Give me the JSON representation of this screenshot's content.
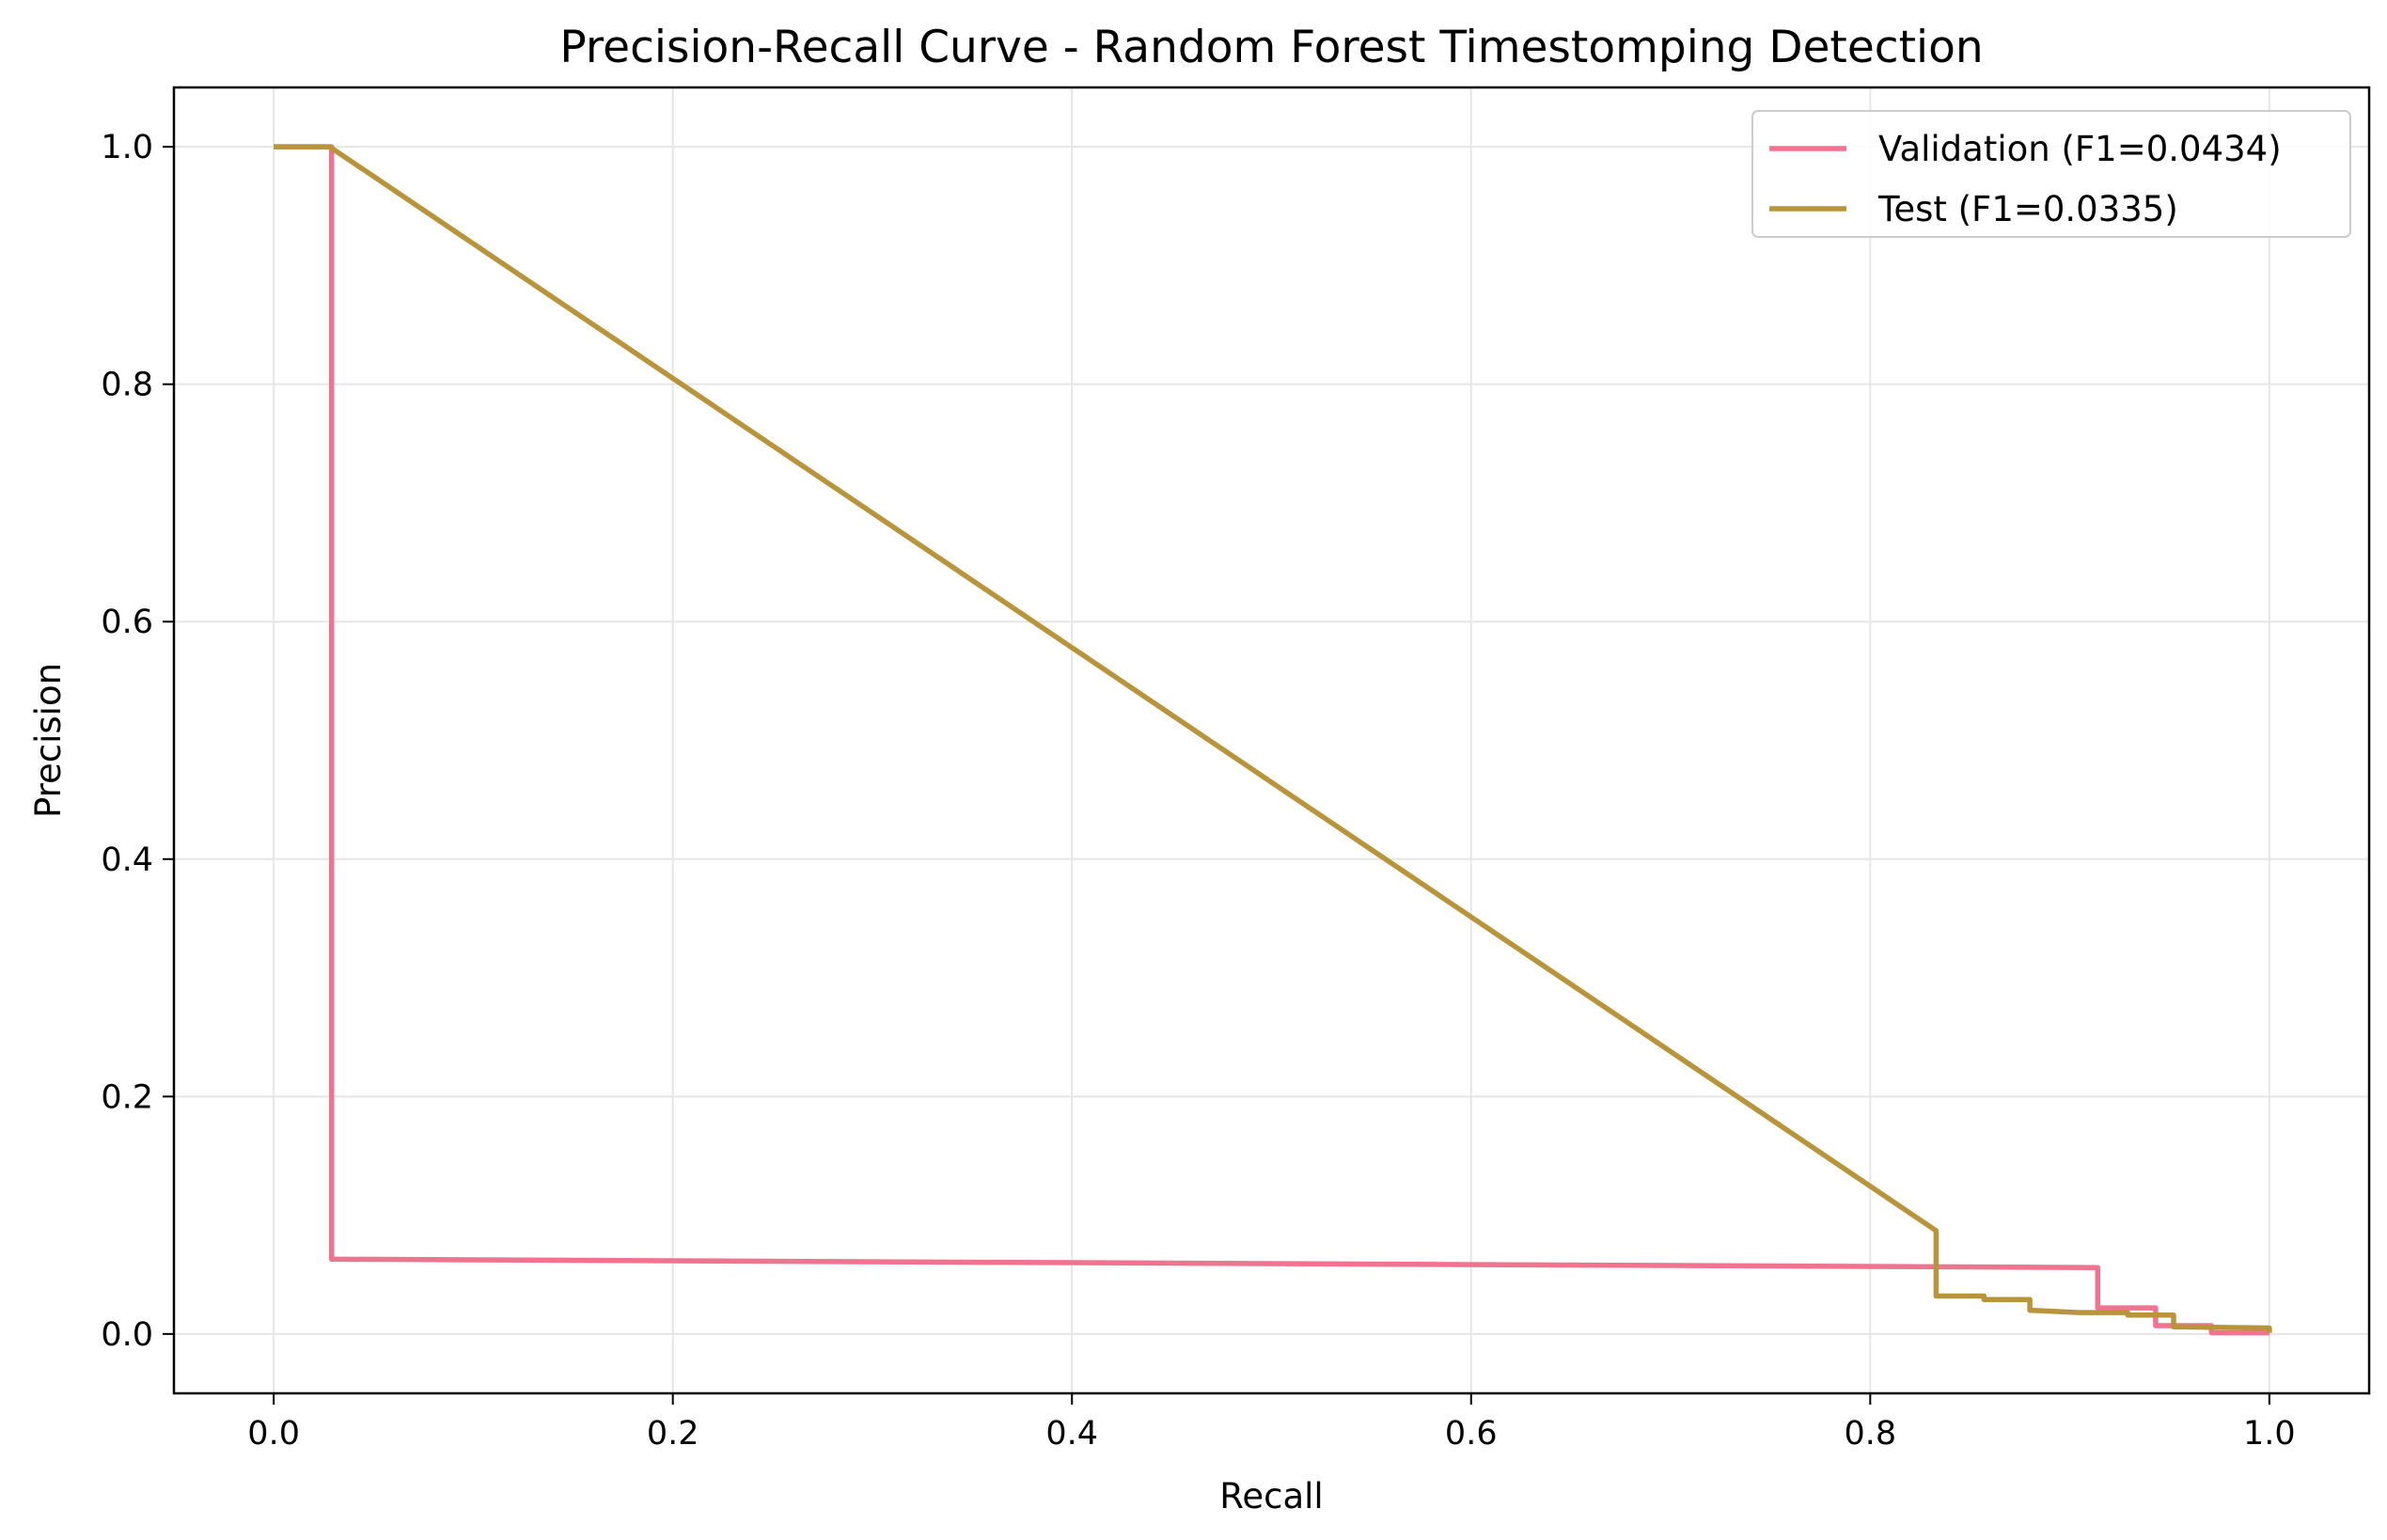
{
  "chart_data": {
    "type": "line",
    "title": "Precision-Recall Curve - Random Forest Timestomping Detection",
    "xlabel": "Recall",
    "ylabel": "Precision",
    "xlim": [
      -0.05,
      1.05
    ],
    "ylim": [
      -0.05,
      1.05
    ],
    "xticks": [
      0.0,
      0.2,
      0.4,
      0.6,
      0.8,
      1.0
    ],
    "xtick_labels": [
      "0.0",
      "0.2",
      "0.4",
      "0.6",
      "0.8",
      "1.0"
    ],
    "yticks": [
      0.0,
      0.2,
      0.4,
      0.6,
      0.8,
      1.0
    ],
    "ytick_labels": [
      "0.0",
      "0.2",
      "0.4",
      "0.6",
      "0.8",
      "1.0"
    ],
    "grid": true,
    "legend_position": "top-right",
    "series": [
      {
        "name": "Validation (F1=0.0434)",
        "color": "#f07390",
        "x": [
          0.0,
          0.029,
          0.029,
          0.029,
          0.914,
          0.914,
          0.943,
          0.943,
          0.971,
          0.971,
          1.0
        ],
        "y": [
          1.0,
          1.0,
          0.5,
          0.063,
          0.056,
          0.022,
          0.022,
          0.007,
          0.007,
          0.001,
          0.001
        ]
      },
      {
        "name": "Test (F1=0.0335)",
        "color": "#b8953a",
        "x": [
          0.0,
          0.028,
          0.833,
          0.833,
          0.857,
          0.857,
          0.88,
          0.88,
          0.905,
          0.929,
          0.929,
          0.952,
          0.952,
          1.0,
          1.0
        ],
        "y": [
          1.0,
          1.0,
          0.087,
          0.032,
          0.032,
          0.029,
          0.029,
          0.02,
          0.018,
          0.018,
          0.016,
          0.016,
          0.006,
          0.005,
          0.001
        ]
      }
    ]
  }
}
